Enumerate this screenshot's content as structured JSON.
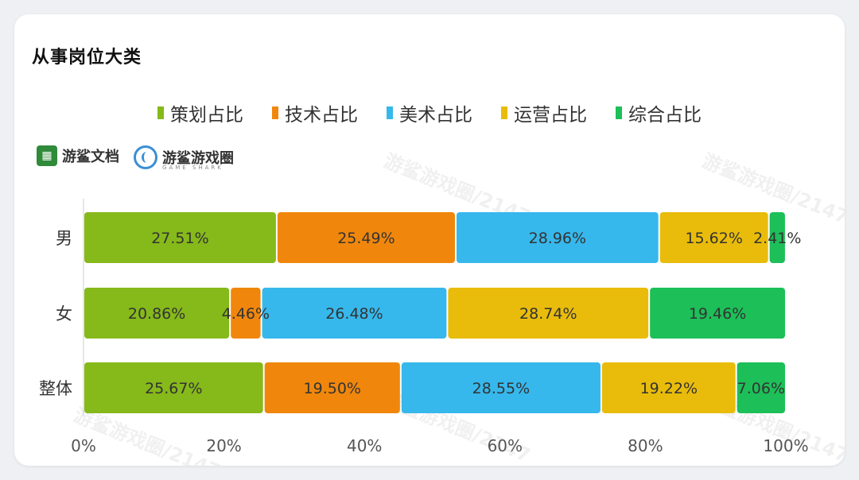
{
  "title": "从事岗位大类",
  "brands": {
    "doc": "游鲨文档",
    "circle": "游鲨游戏圈",
    "circle_sub": "GAME SHARK"
  },
  "watermark": "游鲨游戏圈/2147",
  "chart_data": {
    "type": "bar",
    "orientation": "horizontal",
    "stacked": true,
    "categories": [
      "男",
      "女",
      "整体"
    ],
    "series": [
      {
        "name": "策划占比",
        "color": "#86b91a",
        "values": [
          27.51,
          20.86,
          25.67
        ],
        "labels": [
          "27.51%",
          "20.86%",
          "25.67%"
        ]
      },
      {
        "name": "技术占比",
        "color": "#f0870c",
        "values": [
          25.49,
          4.46,
          19.5
        ],
        "labels": [
          "25.49%",
          "4.46%",
          "19.50%"
        ]
      },
      {
        "name": "美术占比",
        "color": "#36b8ec",
        "values": [
          28.96,
          26.48,
          28.55
        ],
        "labels": [
          "28.96%",
          "26.48%",
          "28.55%"
        ]
      },
      {
        "name": "运营占比",
        "color": "#e9bc0b",
        "values": [
          15.62,
          28.74,
          19.22
        ],
        "labels": [
          "15.62%",
          "28.74%",
          "19.22%"
        ]
      },
      {
        "name": "综合占比",
        "color": "#1dbf58",
        "values": [
          2.41,
          19.46,
          7.06
        ],
        "labels": [
          "2.41%",
          "19.46%",
          "7.06%"
        ]
      }
    ],
    "xlim": [
      0,
      100
    ],
    "xticks": [
      "0%",
      "20%",
      "40%",
      "60%",
      "80%",
      "100%"
    ],
    "legend_position": "top",
    "grid": false
  }
}
